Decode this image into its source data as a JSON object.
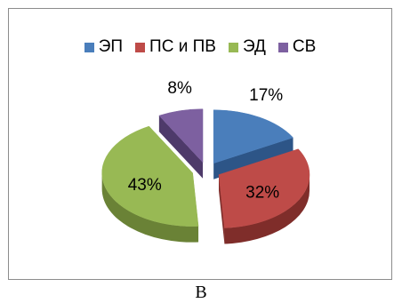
{
  "chart_data": {
    "type": "pie",
    "title": "",
    "legend_position": "top",
    "labels": [
      "ЭП",
      "ПС и ПВ",
      "ЭД",
      "СВ"
    ],
    "values": [
      17,
      32,
      43,
      8
    ],
    "value_labels": [
      "17%",
      "32%",
      "43%",
      "8%"
    ],
    "colors": [
      "#4a7ebb",
      "#be4b48",
      "#98b954",
      "#7d60a0"
    ],
    "side_colors": [
      "#2d5587",
      "#7f2d2a",
      "#6a8236",
      "#4e3a6a"
    ],
    "style": "3d exploded"
  },
  "caption": "В"
}
